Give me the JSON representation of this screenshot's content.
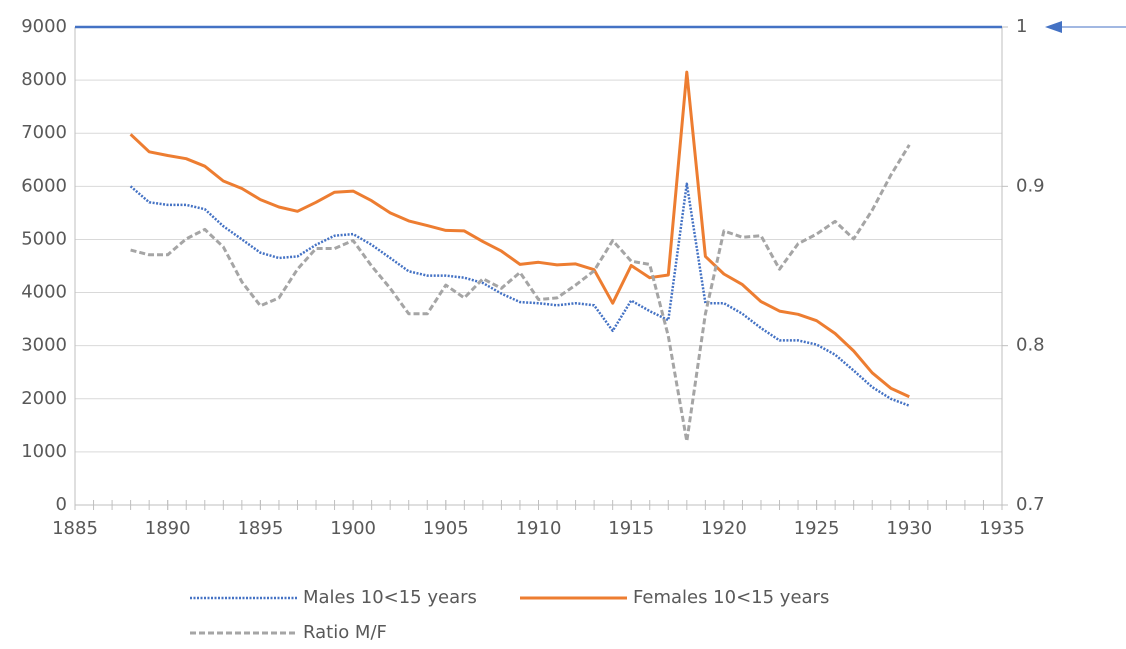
{
  "chart_data": {
    "type": "line",
    "x": [
      1888,
      1889,
      1890,
      1891,
      1892,
      1893,
      1894,
      1895,
      1896,
      1897,
      1898,
      1899,
      1900,
      1901,
      1902,
      1903,
      1904,
      1905,
      1906,
      1907,
      1908,
      1909,
      1910,
      1911,
      1912,
      1913,
      1914,
      1915,
      1916,
      1917,
      1918,
      1919,
      1920,
      1921,
      1922,
      1923,
      1924,
      1925,
      1926,
      1927,
      1928,
      1929,
      1930
    ],
    "series": [
      {
        "name": "Males 10<15 years",
        "color": "#4472c4",
        "line_style": "dotted",
        "values": [
          6000,
          5700,
          5650,
          5650,
          5570,
          5250,
          5000,
          4750,
          4650,
          4680,
          4900,
          5070,
          5100,
          4900,
          4650,
          4400,
          4320,
          4320,
          4280,
          4180,
          3980,
          3820,
          3800,
          3760,
          3800,
          3760,
          3280,
          3850,
          3650,
          3480,
          6050,
          3800,
          3800,
          3600,
          3330,
          3100,
          3100,
          3020,
          2830,
          2530,
          2220,
          2000,
          1870
        ]
      },
      {
        "name": "Females 10<15 years",
        "color": "#ed7d31",
        "line_style": "solid",
        "values": [
          6980,
          6650,
          6580,
          6520,
          6380,
          6100,
          5960,
          5750,
          5610,
          5530,
          5700,
          5890,
          5910,
          5730,
          5500,
          5350,
          5260,
          5170,
          5160,
          4960,
          4780,
          4530,
          4570,
          4520,
          4540,
          4430,
          3800,
          4510,
          4280,
          4330,
          8150,
          4680,
          4350,
          4150,
          3830,
          3650,
          3590,
          3470,
          3230,
          2900,
          2490,
          2200,
          2040
        ]
      },
      {
        "name": "Ratio M/F",
        "color": "#a5a5a5",
        "line_style": "dashed",
        "axis": "y2",
        "values": [
          0.86,
          0.857,
          0.857,
          0.867,
          0.873,
          0.862,
          0.84,
          0.825,
          0.83,
          0.848,
          0.861,
          0.861,
          0.866,
          0.85,
          0.836,
          0.82,
          0.82,
          0.838,
          0.83,
          0.842,
          0.836,
          0.846,
          0.829,
          0.83,
          0.838,
          0.847,
          0.866,
          0.853,
          0.851,
          0.806,
          0.74,
          0.82,
          0.872,
          0.868,
          0.869,
          0.848,
          0.864,
          0.87,
          0.878,
          0.867,
          0.885,
          0.907,
          0.926
        ]
      }
    ],
    "reference_line": {
      "value": 1,
      "axis": "y2",
      "color": "#4472c4"
    },
    "xlim": [
      1885,
      1935
    ],
    "xticks": [
      1885,
      1890,
      1895,
      1900,
      1905,
      1910,
      1915,
      1920,
      1925,
      1930,
      1935
    ],
    "ylim": [
      0,
      9000
    ],
    "yticks": [
      0,
      1000,
      2000,
      3000,
      4000,
      5000,
      6000,
      7000,
      8000,
      9000
    ],
    "y2lim": [
      0.7,
      1
    ],
    "y2ticks": [
      0.7,
      0.8,
      0.9,
      1
    ],
    "grid": true,
    "legend": "bottom"
  }
}
